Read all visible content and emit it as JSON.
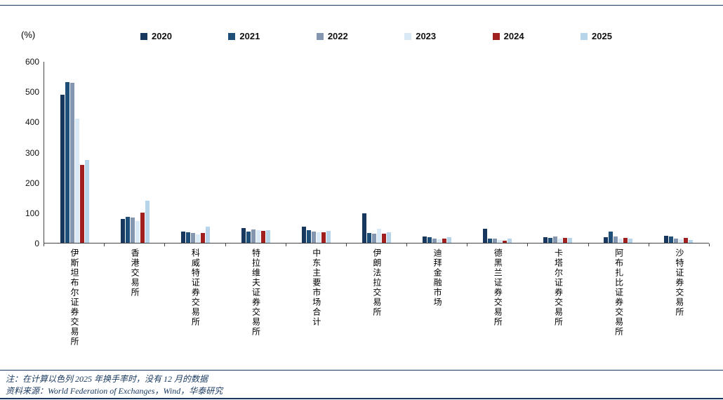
{
  "chart_data": {
    "type": "bar",
    "title": "",
    "xlabel": "",
    "ylabel": "(%)",
    "ylim": [
      0,
      600
    ],
    "yticks": [
      0,
      100,
      200,
      300,
      400,
      500,
      600
    ],
    "grid": false,
    "legend_position": "top",
    "categories": [
      "伊斯坦布尔证券交易所",
      "香港交易所",
      "科威特证券交易所",
      "特拉维夫证券交易所",
      "中东主要市场合计",
      "伊朗法拉交易所",
      "迪拜金融市场",
      "德黑兰证券交易所",
      "卡塔尔证券交易所",
      "阿布扎比证券交易所",
      "沙特证券交易所"
    ],
    "series": [
      {
        "name": "2020",
        "color": "#17375e",
        "values": [
          490,
          80,
          37,
          48,
          53,
          97,
          20,
          46,
          18,
          18,
          23
        ]
      },
      {
        "name": "2021",
        "color": "#1f4e79",
        "values": [
          533,
          85,
          36,
          38,
          42,
          33,
          18,
          15,
          17,
          38,
          20
        ]
      },
      {
        "name": "2022",
        "color": "#8496b0",
        "values": [
          530,
          83,
          32,
          44,
          37,
          30,
          13,
          13,
          20,
          20,
          15
        ]
      },
      {
        "name": "2023",
        "color": "#d9e9f6",
        "values": [
          412,
          72,
          28,
          42,
          35,
          46,
          12,
          10,
          15,
          15,
          12
        ]
      },
      {
        "name": "2024",
        "color": "#a02020",
        "values": [
          258,
          100,
          33,
          40,
          36,
          31,
          14,
          8,
          16,
          16,
          17
        ]
      },
      {
        "name": "2025",
        "color": "#b7d5ea",
        "values": [
          275,
          140,
          54,
          43,
          39,
          36,
          19,
          13,
          17,
          13,
          10
        ]
      }
    ]
  },
  "notes": {
    "note1": "注：在计算以色列 2025 年换手率时，没有 12 月的数据",
    "note2": "资料来源：World Federation of Exchanges，Wind，华泰研究"
  }
}
